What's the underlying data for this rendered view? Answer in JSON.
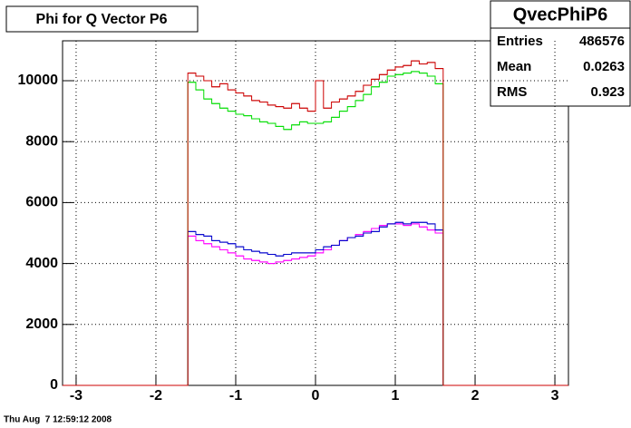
{
  "chart_data": {
    "type": "histogram",
    "title": "Phi for Q Vector P6",
    "footer": "Thu Aug  7 12:59:12 2008",
    "xlim": [
      -3.17,
      3.17
    ],
    "ylim": [
      0,
      11310
    ],
    "xticks": [
      -3,
      -2,
      -1,
      0,
      1,
      2,
      3
    ],
    "yticks": [
      0,
      2000,
      4000,
      6000,
      8000,
      10000
    ],
    "grid": true,
    "bins": [
      -1.6,
      -1.5,
      -1.4,
      -1.3,
      -1.2,
      -1.1,
      -1.0,
      -0.9,
      -0.8,
      -0.7,
      -0.6,
      -0.5,
      -0.4,
      -0.3,
      -0.2,
      -0.1,
      0.0,
      0.1,
      0.2,
      0.3,
      0.4,
      0.5,
      0.6,
      0.7,
      0.8,
      0.9,
      1.0,
      1.1,
      1.2,
      1.3,
      1.4,
      1.5,
      1.6
    ],
    "series": [
      {
        "color": "#ff00ff",
        "values": [
          4900,
          4750,
          4650,
          4550,
          4450,
          4350,
          4250,
          4150,
          4100,
          4050,
          4000,
          4050,
          4100,
          4150,
          4200,
          4250,
          4350,
          4450,
          4600,
          4750,
          4850,
          4950,
          5050,
          5150,
          5250,
          5300,
          5300,
          5250,
          5300,
          5200,
          5100,
          5000
        ]
      },
      {
        "color": "#0000cc",
        "values": [
          5050,
          4950,
          4900,
          4750,
          4700,
          4650,
          4550,
          4450,
          4400,
          4350,
          4300,
          4250,
          4300,
          4350,
          4350,
          4350,
          4450,
          4550,
          4600,
          4750,
          4850,
          4900,
          5000,
          5050,
          5200,
          5300,
          5350,
          5300,
          5350,
          5350,
          5300,
          5100
        ]
      },
      {
        "color": "#00dd00",
        "values": [
          9950,
          9700,
          9400,
          9250,
          9100,
          9000,
          8900,
          8850,
          8750,
          8650,
          8600,
          8500,
          8400,
          8550,
          8650,
          8600,
          8600,
          8650,
          8800,
          9000,
          9150,
          9350,
          9550,
          9800,
          9950,
          10150,
          10200,
          10250,
          10300,
          10250,
          10150,
          9900
        ]
      },
      {
        "color": "#cc0000",
        "values": [
          10250,
          10150,
          10000,
          9800,
          9900,
          9700,
          9600,
          9500,
          9350,
          9300,
          9200,
          9150,
          9100,
          9250,
          9100,
          9000,
          10000,
          9100,
          9300,
          9400,
          9500,
          9650,
          9850,
          10050,
          10200,
          10350,
          10450,
          10500,
          10650,
          10550,
          10600,
          10400
        ]
      }
    ],
    "stats": {
      "title": "QvecPhiP6",
      "rows": [
        {
          "label": "Entries",
          "value": 486576
        },
        {
          "label": "Mean",
          "value": 0.0263
        },
        {
          "label": "RMS",
          "value": 0.923
        }
      ]
    }
  }
}
